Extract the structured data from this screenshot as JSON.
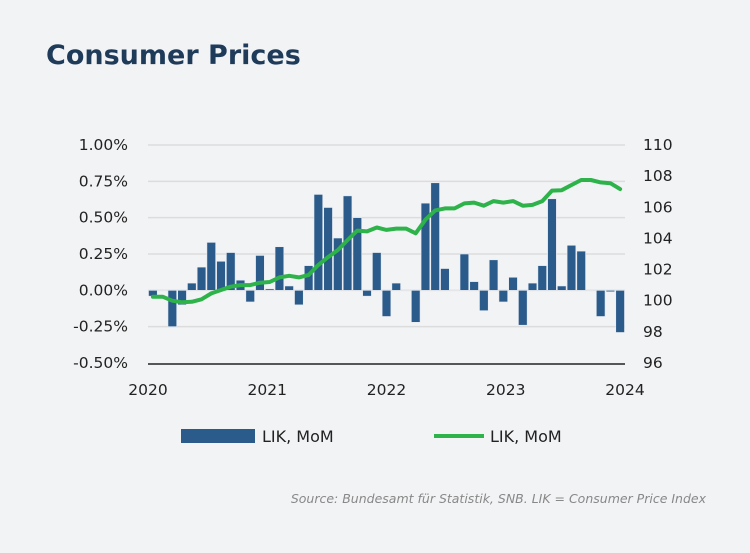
{
  "title": "Consumer Prices",
  "source": "Source: Bundesamt für Statistik, SNB. LIK = Consumer Price Index",
  "colors": {
    "bar": "#2b5b8a",
    "line": "#2db34a",
    "title": "#1e3b5a",
    "background": "#f2f3f5"
  },
  "chart_data": {
    "type": "bar+line",
    "x_ticks": [
      "2020",
      "2021",
      "2022",
      "2023",
      "2024"
    ],
    "left_axis": {
      "ylim": [
        -0.5,
        1.0
      ],
      "ticks": [
        "1.00%",
        "0.75%",
        "0.50%",
        "0.25%",
        "0.00%",
        "-0.25%",
        "-0.50%"
      ],
      "tick_values": [
        1.0,
        0.75,
        0.5,
        0.25,
        0,
        -0.25,
        -0.5
      ]
    },
    "right_axis": {
      "ylim": [
        96,
        110
      ],
      "ticks": [
        "110",
        "108",
        "106",
        "104",
        "102",
        "100",
        "98",
        "96"
      ],
      "tick_values": [
        110,
        108,
        106,
        104,
        102,
        100,
        98,
        96
      ]
    },
    "grid": "horizontal (left axis)",
    "legend_placement": "bottom",
    "series": [
      {
        "name": "LIK, MoM",
        "type": "bar",
        "axis": "left",
        "values": [
          -0.04,
          0.0,
          -0.25,
          -0.1,
          0.05,
          0.16,
          0.33,
          0.2,
          0.26,
          0.07,
          -0.08,
          0.24,
          0.01,
          0.3,
          0.03,
          -0.1,
          0.17,
          0.66,
          0.57,
          0.36,
          0.65,
          0.5,
          -0.04,
          0.26,
          -0.18,
          0.05,
          0.0,
          -0.22,
          0.6,
          0.74,
          0.15,
          0.0,
          0.25,
          0.06,
          -0.14,
          0.21,
          -0.08,
          0.09,
          -0.24,
          0.05,
          0.17,
          0.63,
          0.03,
          0.31,
          0.27,
          0.0,
          -0.18,
          -0.01,
          -0.29
        ]
      },
      {
        "name": "LIK, MoM",
        "type": "line",
        "axis": "right",
        "values": [
          100.26,
          100.26,
          100.0,
          99.9,
          99.93,
          100.09,
          100.47,
          100.69,
          100.9,
          101.0,
          101.0,
          101.16,
          101.2,
          101.5,
          101.6,
          101.5,
          101.65,
          102.3,
          102.8,
          103.25,
          103.9,
          104.5,
          104.45,
          104.7,
          104.55,
          104.63,
          104.63,
          104.33,
          105.2,
          105.8,
          105.93,
          105.93,
          106.25,
          106.3,
          106.1,
          106.4,
          106.3,
          106.4,
          106.1,
          106.15,
          106.4,
          107.07,
          107.1,
          107.43,
          107.75,
          107.75,
          107.6,
          107.55,
          107.17
        ]
      }
    ]
  }
}
